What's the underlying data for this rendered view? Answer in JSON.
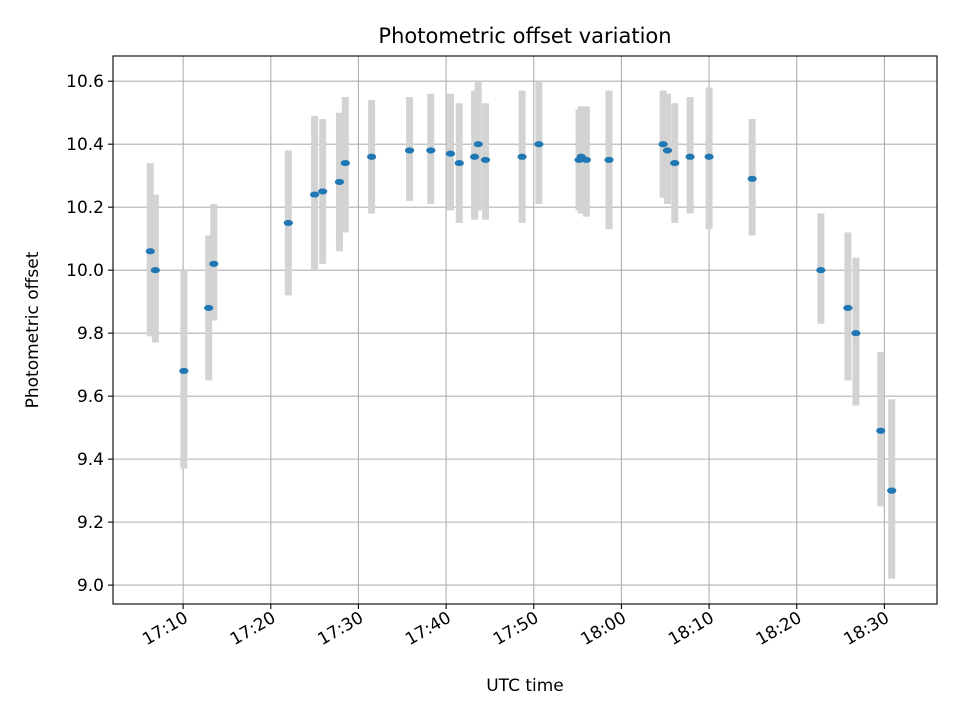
{
  "chart_data": {
    "type": "scatter",
    "title": "Photometric offset variation",
    "xlabel": "UTC time",
    "ylabel": "Photometric offset",
    "x_is_time": true,
    "xlim": [
      "17:02",
      "18:36"
    ],
    "ylim": [
      8.94,
      10.68
    ],
    "x_ticks": [
      "17:10",
      "17:20",
      "17:30",
      "17:40",
      "17:50",
      "18:00",
      "18:10",
      "18:20",
      "18:30"
    ],
    "y_ticks": [
      "9.0",
      "9.2",
      "9.4",
      "9.6",
      "9.8",
      "10.0",
      "10.2",
      "10.4",
      "10.6"
    ],
    "grid": true,
    "series": [
      {
        "marker_color": "#1f77b4",
        "errorbar_color": "#d3d3d3",
        "points": [
          {
            "x": "17:06:15",
            "y": 10.06,
            "lo": 9.79,
            "hi": 10.34
          },
          {
            "x": "17:06:50",
            "y": 10.0,
            "lo": 9.77,
            "hi": 10.24
          },
          {
            "x": "17:10:05",
            "y": 9.68,
            "lo": 9.37,
            "hi": 10.0
          },
          {
            "x": "17:12:55",
            "y": 9.88,
            "lo": 9.65,
            "hi": 10.11
          },
          {
            "x": "17:13:30",
            "y": 10.02,
            "lo": 9.84,
            "hi": 10.21
          },
          {
            "x": "17:22:00",
            "y": 10.15,
            "lo": 9.92,
            "hi": 10.38
          },
          {
            "x": "17:25:00",
            "y": 10.24,
            "lo": 10.0,
            "hi": 10.49
          },
          {
            "x": "17:25:55",
            "y": 10.25,
            "lo": 10.02,
            "hi": 10.48
          },
          {
            "x": "17:27:50",
            "y": 10.28,
            "lo": 10.06,
            "hi": 10.5
          },
          {
            "x": "17:28:30",
            "y": 10.34,
            "lo": 10.12,
            "hi": 10.55
          },
          {
            "x": "17:31:30",
            "y": 10.36,
            "lo": 10.18,
            "hi": 10.54
          },
          {
            "x": "17:35:50",
            "y": 10.38,
            "lo": 10.22,
            "hi": 10.55
          },
          {
            "x": "17:38:15",
            "y": 10.38,
            "lo": 10.21,
            "hi": 10.56
          },
          {
            "x": "17:40:30",
            "y": 10.37,
            "lo": 10.19,
            "hi": 10.56
          },
          {
            "x": "17:41:30",
            "y": 10.34,
            "lo": 10.15,
            "hi": 10.53
          },
          {
            "x": "17:43:15",
            "y": 10.36,
            "lo": 10.16,
            "hi": 10.57
          },
          {
            "x": "17:43:40",
            "y": 10.4,
            "lo": 10.19,
            "hi": 10.6
          },
          {
            "x": "17:44:30",
            "y": 10.35,
            "lo": 10.16,
            "hi": 10.53
          },
          {
            "x": "17:48:40",
            "y": 10.36,
            "lo": 10.15,
            "hi": 10.57
          },
          {
            "x": "17:50:35",
            "y": 10.4,
            "lo": 10.21,
            "hi": 10.6
          },
          {
            "x": "17:55:10",
            "y": 10.35,
            "lo": 10.19,
            "hi": 10.51
          },
          {
            "x": "17:55:25",
            "y": 10.36,
            "lo": 10.18,
            "hi": 10.52
          },
          {
            "x": "17:56:00",
            "y": 10.35,
            "lo": 10.17,
            "hi": 10.52
          },
          {
            "x": "17:58:35",
            "y": 10.35,
            "lo": 10.13,
            "hi": 10.57
          },
          {
            "x": "18:04:45",
            "y": 10.4,
            "lo": 10.23,
            "hi": 10.57
          },
          {
            "x": "18:05:15",
            "y": 10.38,
            "lo": 10.21,
            "hi": 10.56
          },
          {
            "x": "18:06:05",
            "y": 10.34,
            "lo": 10.15,
            "hi": 10.53
          },
          {
            "x": "18:07:50",
            "y": 10.36,
            "lo": 10.18,
            "hi": 10.55
          },
          {
            "x": "18:10:00",
            "y": 10.36,
            "lo": 10.13,
            "hi": 10.58
          },
          {
            "x": "18:14:55",
            "y": 10.29,
            "lo": 10.11,
            "hi": 10.48
          },
          {
            "x": "18:22:45",
            "y": 10.0,
            "lo": 9.83,
            "hi": 10.18
          },
          {
            "x": "18:25:50",
            "y": 9.88,
            "lo": 9.65,
            "hi": 10.12
          },
          {
            "x": "18:26:45",
            "y": 9.8,
            "lo": 9.57,
            "hi": 10.04
          },
          {
            "x": "18:29:35",
            "y": 9.49,
            "lo": 9.25,
            "hi": 9.74
          },
          {
            "x": "18:30:50",
            "y": 9.3,
            "lo": 9.02,
            "hi": 9.59
          }
        ]
      }
    ]
  }
}
